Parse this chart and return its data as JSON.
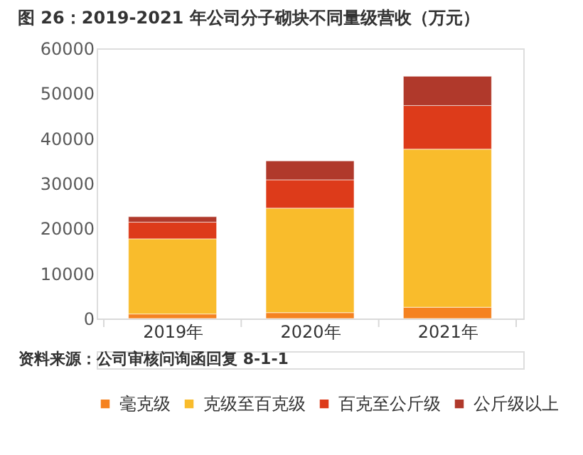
{
  "chart_data": {
    "type": "bar",
    "stacked": true,
    "title": "图 26：2019-2021 年公司分子砌块不同量级营收（万元）",
    "categories": [
      "2019年",
      "2020年",
      "2021年"
    ],
    "series": [
      {
        "name": "毫克级",
        "color": "#f58220",
        "values": [
          1000,
          1300,
          2500
        ]
      },
      {
        "name": "克级至百克级",
        "color": "#f9bc2c",
        "values": [
          16700,
          23200,
          35100
        ]
      },
      {
        "name": "百克至公斤级",
        "color": "#dd3b1a",
        "values": [
          3700,
          6300,
          9700
        ]
      },
      {
        "name": "公斤级以上",
        "color": "#b0392b",
        "values": [
          1200,
          4200,
          6500
        ]
      }
    ],
    "ylim": [
      0,
      60000
    ],
    "yticks": [
      0,
      10000,
      20000,
      30000,
      40000,
      50000,
      60000
    ],
    "grid": false,
    "legend": "bottom",
    "annotations": [
      "资料来源：公司审核问询函回复 8-1-1"
    ]
  }
}
